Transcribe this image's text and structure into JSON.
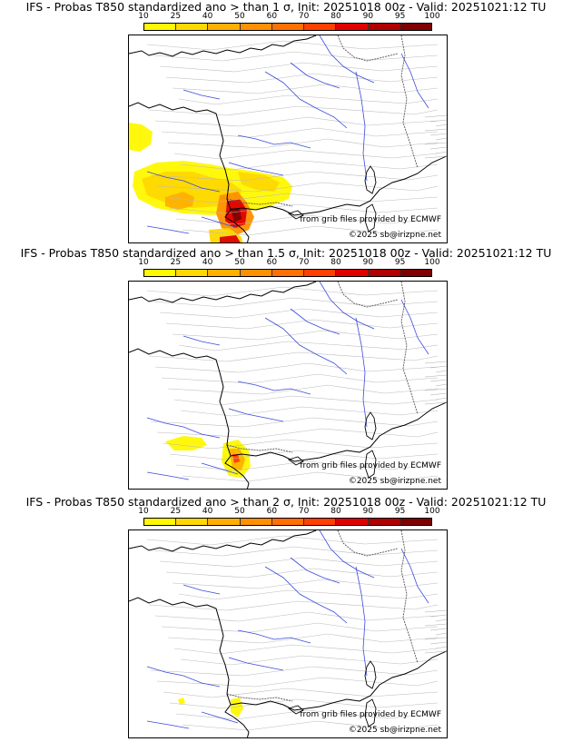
{
  "colorbar": {
    "ticks": [
      "10",
      "25",
      "40",
      "50",
      "60",
      "70",
      "80",
      "90",
      "95",
      "100"
    ],
    "colors": [
      "#fff800",
      "#ffd800",
      "#ffb000",
      "#ff9000",
      "#ff7000",
      "#ff4000",
      "#e00000",
      "#b00000",
      "#800000"
    ]
  },
  "panels": [
    {
      "title": "IFS - Probas T850  standardized ano > than 1 σ, Init: 20251018 00z - Valid: 20251021:12 TU",
      "source_credit": "from grib files provided by ECMWF",
      "copyright": "©2025 sb@irizpne.net"
    },
    {
      "title": "IFS - Probas T850  standardized ano > than 1.5 σ, Init: 20251018 00z - Valid: 20251021:12 TU",
      "source_credit": "from grib files provided by ECMWF",
      "copyright": "©2025 sb@irizpne.net"
    },
    {
      "title": "IFS - Probas T850  standardized ano > than 2 σ, Init: 20251018 00z - Valid: 20251021:12 TU",
      "source_credit": "from grib files provided by ECMWF",
      "copyright": "©2025 sb@irizpne.net"
    }
  ]
}
